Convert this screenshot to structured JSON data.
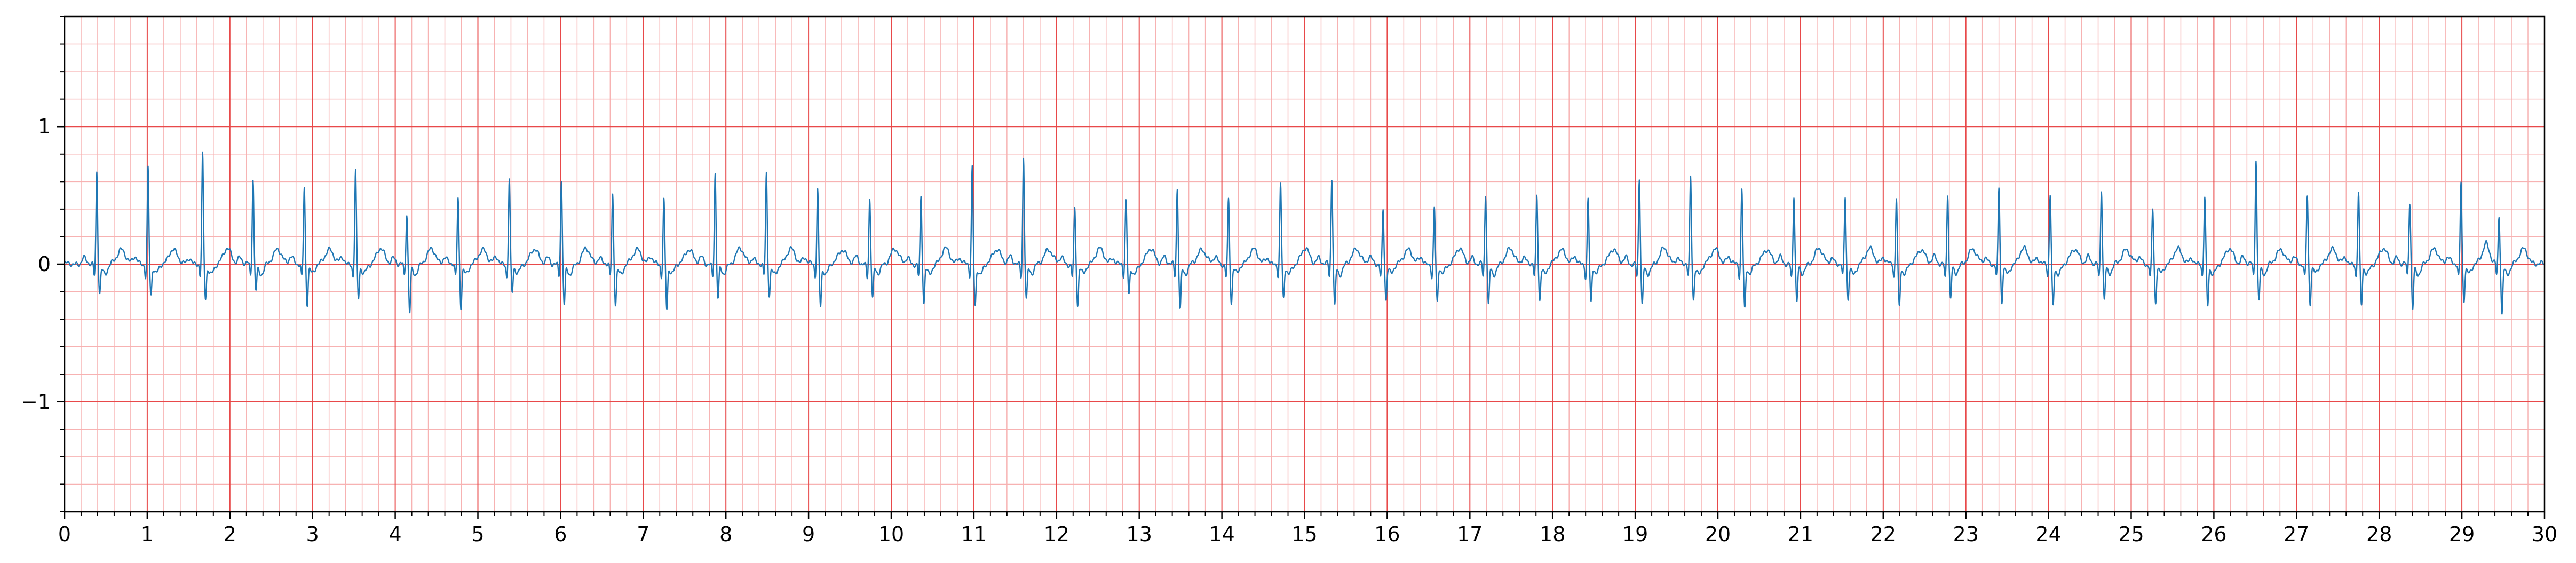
{
  "chart_data": {
    "type": "line",
    "title": "",
    "xlabel": "",
    "ylabel": "",
    "xlim": [
      0,
      30
    ],
    "ylim": [
      -1.8,
      1.8
    ],
    "grid": {
      "major": {
        "x_step": 1,
        "y_step": 1,
        "color": "#e8494a"
      },
      "minor": {
        "x_step": 0.2,
        "y_step": 0.2,
        "color": "#f7b2b2"
      }
    },
    "x_ticks": [
      0,
      1,
      2,
      3,
      4,
      5,
      6,
      7,
      8,
      9,
      10,
      11,
      12,
      13,
      14,
      15,
      16,
      17,
      18,
      19,
      20,
      21,
      22,
      23,
      24,
      25,
      26,
      27,
      28,
      29,
      30
    ],
    "x_tick_labels": [
      "0",
      "1",
      "2",
      "3",
      "4",
      "5",
      "6",
      "7",
      "8",
      "9",
      "10",
      "11",
      "12",
      "13",
      "14",
      "15",
      "16",
      "17",
      "18",
      "19",
      "20",
      "21",
      "22",
      "23",
      "24",
      "25",
      "26",
      "27",
      "28",
      "29",
      "30"
    ],
    "y_ticks": [
      -1,
      0,
      1
    ],
    "y_tick_labels": [
      "−1",
      "0",
      "1"
    ],
    "series": [
      {
        "color": "#1f77b4",
        "beat_times": [
          0.39,
          1.01,
          1.67,
          2.28,
          2.9,
          3.52,
          4.14,
          4.76,
          5.38,
          6.01,
          6.63,
          7.25,
          7.87,
          8.49,
          9.11,
          9.74,
          10.36,
          10.98,
          11.6,
          12.22,
          12.84,
          13.46,
          14.08,
          14.71,
          15.33,
          15.95,
          16.57,
          17.19,
          17.81,
          18.43,
          19.05,
          19.67,
          20.29,
          20.92,
          21.54,
          22.16,
          22.78,
          23.4,
          24.02,
          24.64,
          25.26,
          25.89,
          26.51,
          27.13,
          27.75,
          28.37,
          28.99,
          29.45
        ],
        "r_amplitudes": [
          0.67,
          0.7,
          0.79,
          0.62,
          0.56,
          0.68,
          0.36,
          0.48,
          0.62,
          0.6,
          0.5,
          0.47,
          0.66,
          0.65,
          0.54,
          0.48,
          0.48,
          0.7,
          0.78,
          0.4,
          0.45,
          0.55,
          0.47,
          0.58,
          0.62,
          0.4,
          0.41,
          0.5,
          0.5,
          0.48,
          0.62,
          0.63,
          0.55,
          0.5,
          0.48,
          0.48,
          0.52,
          0.55,
          0.5,
          0.55,
          0.4,
          0.48,
          0.77,
          0.5,
          0.52,
          0.45,
          0.6,
          0.34
        ],
        "s_amplitudes": [
          -0.2,
          -0.22,
          -0.25,
          -0.18,
          -0.28,
          -0.25,
          -0.35,
          -0.3,
          -0.2,
          -0.3,
          -0.28,
          -0.32,
          -0.25,
          -0.22,
          -0.3,
          -0.25,
          -0.28,
          -0.3,
          -0.25,
          -0.3,
          -0.22,
          -0.32,
          -0.28,
          -0.25,
          -0.3,
          -0.25,
          -0.28,
          -0.3,
          -0.25,
          -0.28,
          -0.3,
          -0.25,
          -0.32,
          -0.28,
          -0.25,
          -0.3,
          -0.25,
          -0.28,
          -0.3,
          -0.25,
          -0.28,
          -0.3,
          -0.25,
          -0.28,
          -0.3,
          -0.32,
          -0.25,
          -0.36
        ]
      }
    ]
  }
}
